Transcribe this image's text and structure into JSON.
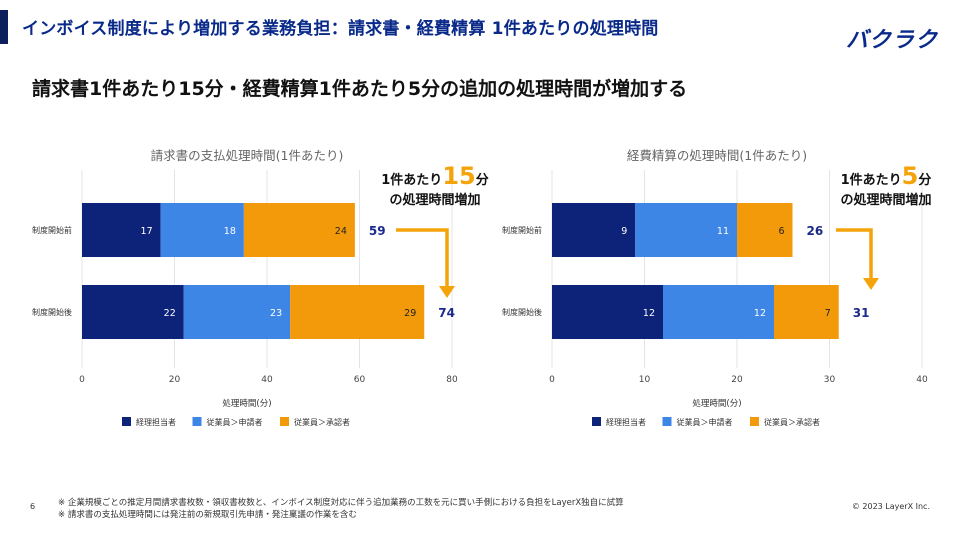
{
  "header": {
    "title": "インボイス制度により増加する業務負担：請求書・経費精算 1件あたりの処理時間",
    "logo": "バクラク"
  },
  "headline": "請求書1件あたり15分・経費精算1件あたり5分の追加の処理時間が増加する",
  "callouts": {
    "left": {
      "prefix": "1件あたり",
      "number": "15",
      "suffix": "分",
      "line2": "の処理時間増加"
    },
    "right": {
      "prefix": "1件あたり",
      "number": "5",
      "suffix": "分",
      "line2": "の処理時間増加"
    }
  },
  "colors": {
    "series1": "#0d237a",
    "series2": "#3d86e6",
    "series3": "#f39a0b",
    "arrow": "#f5a30a",
    "total": "#1b2a8c",
    "grid": "#e4e4e4"
  },
  "chart_data": [
    {
      "type": "bar",
      "orientation": "horizontal",
      "stacked": true,
      "title": "請求書の支払処理時間(1件あたり)",
      "xlabel": "処理時間(分)",
      "ylabel": "",
      "xlim": [
        0,
        80
      ],
      "xticks": [
        0,
        20,
        40,
        60,
        80
      ],
      "categories": [
        "制度開始前",
        "制度開始後"
      ],
      "series": [
        {
          "name": "経理担当者",
          "values": [
            17,
            22
          ]
        },
        {
          "name": "従業員＞申請者",
          "values": [
            18,
            23
          ]
        },
        {
          "name": "従業員＞承認者",
          "values": [
            24,
            29
          ]
        }
      ],
      "totals": [
        59,
        74
      ],
      "legend": "bottom"
    },
    {
      "type": "bar",
      "orientation": "horizontal",
      "stacked": true,
      "title": "経費精算の処理時間(1件あたり)",
      "xlabel": "処理時間(分)",
      "ylabel": "",
      "xlim": [
        0,
        40
      ],
      "xticks": [
        0,
        10,
        20,
        30,
        40
      ],
      "categories": [
        "制度開始前",
        "制度開始後"
      ],
      "series": [
        {
          "name": "経理担当者",
          "values": [
            9,
            12
          ]
        },
        {
          "name": "従業員＞申請者",
          "values": [
            11,
            12
          ]
        },
        {
          "name": "従業員＞承認者",
          "values": [
            6,
            7
          ]
        }
      ],
      "totals": [
        26,
        31
      ],
      "legend": "bottom"
    }
  ],
  "footer": {
    "page_number": "6",
    "notes": [
      "※ 企業規模ごとの推定月間請求書枚数・領収書枚数と、インボイス制度対応に伴う追加業務の工数を元に買い手側における負担をLayerX独自に試算",
      "※ 請求書の支払処理時間には発注前の新規取引先申請・発注稟議の作業を含む"
    ],
    "copyright": "© 2023 LayerX Inc."
  }
}
